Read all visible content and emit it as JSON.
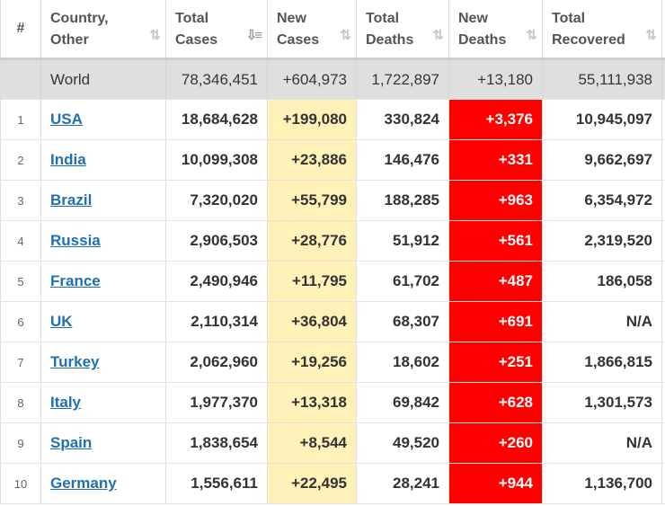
{
  "headers": {
    "rank": "#",
    "country": [
      "Country,",
      "Other"
    ],
    "total_cases": [
      "Total",
      "Cases"
    ],
    "new_cases": [
      "New",
      "Cases"
    ],
    "total_deaths": [
      "Total",
      "Deaths"
    ],
    "new_deaths": [
      "New",
      "Deaths"
    ],
    "total_recovered": [
      "Total",
      "Recovered"
    ]
  },
  "sort_icon": "⇅",
  "sort_icon_active": "⇩≡",
  "world": {
    "country": "World",
    "total_cases": "78,346,451",
    "new_cases": "+604,973",
    "total_deaths": "1,722,897",
    "new_deaths": "+13,180",
    "total_recovered": "55,111,938"
  },
  "rows": [
    {
      "rank": "1",
      "country": "USA",
      "total_cases": "18,684,628",
      "new_cases": "+199,080",
      "total_deaths": "330,824",
      "new_deaths": "+3,376",
      "total_recovered": "10,945,097"
    },
    {
      "rank": "2",
      "country": "India",
      "total_cases": "10,099,308",
      "new_cases": "+23,886",
      "total_deaths": "146,476",
      "new_deaths": "+331",
      "total_recovered": "9,662,697"
    },
    {
      "rank": "3",
      "country": "Brazil",
      "total_cases": "7,320,020",
      "new_cases": "+55,799",
      "total_deaths": "188,285",
      "new_deaths": "+963",
      "total_recovered": "6,354,972"
    },
    {
      "rank": "4",
      "country": "Russia",
      "total_cases": "2,906,503",
      "new_cases": "+28,776",
      "total_deaths": "51,912",
      "new_deaths": "+561",
      "total_recovered": "2,319,520"
    },
    {
      "rank": "5",
      "country": "France",
      "total_cases": "2,490,946",
      "new_cases": "+11,795",
      "total_deaths": "61,702",
      "new_deaths": "+487",
      "total_recovered": "186,058"
    },
    {
      "rank": "6",
      "country": "UK",
      "total_cases": "2,110,314",
      "new_cases": "+36,804",
      "total_deaths": "68,307",
      "new_deaths": "+691",
      "total_recovered": "N/A"
    },
    {
      "rank": "7",
      "country": "Turkey",
      "total_cases": "2,062,960",
      "new_cases": "+19,256",
      "total_deaths": "18,602",
      "new_deaths": "+251",
      "total_recovered": "1,866,815"
    },
    {
      "rank": "8",
      "country": "Italy",
      "total_cases": "1,977,370",
      "new_cases": "+13,318",
      "total_deaths": "69,842",
      "new_deaths": "+628",
      "total_recovered": "1,301,573"
    },
    {
      "rank": "9",
      "country": "Spain",
      "total_cases": "1,838,654",
      "new_cases": "+8,544",
      "total_deaths": "49,520",
      "new_deaths": "+260",
      "total_recovered": "N/A"
    },
    {
      "rank": "10",
      "country": "Germany",
      "total_cases": "1,556,611",
      "new_cases": "+22,495",
      "total_deaths": "28,241",
      "new_deaths": "+944",
      "total_recovered": "1,136,700"
    }
  ],
  "colors": {
    "new_cases_bg": "#fff1b8",
    "new_deaths_bg": "#ff0000",
    "world_row_bg": "#dfdfdf",
    "link": "#1f6fb2"
  }
}
